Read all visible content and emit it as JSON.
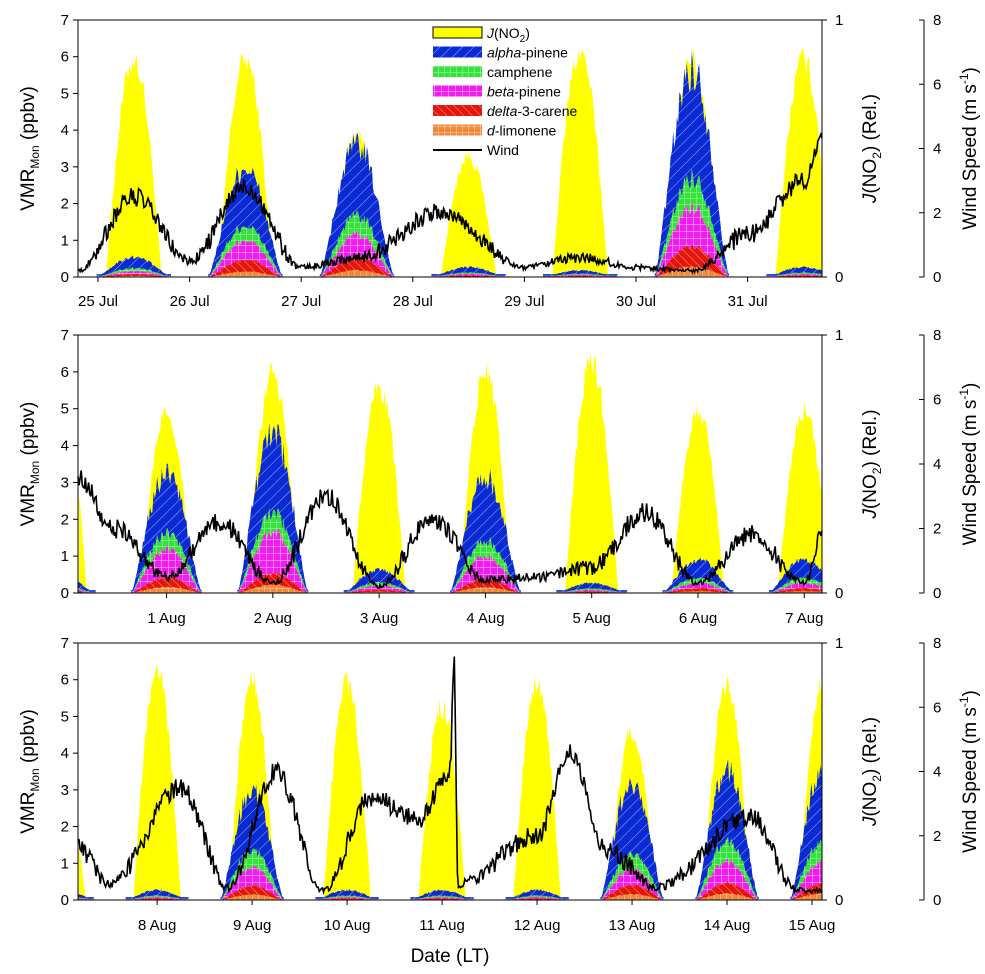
{
  "chart_data": {
    "type": "area",
    "xlabel": "Date (LT)",
    "y_left": {
      "label_main": "VMR",
      "label_sub": "Mon",
      "label_unit": "(ppbv)",
      "range": [
        0,
        7
      ],
      "ticks": [
        "0",
        "1",
        "2",
        "3",
        "4",
        "5",
        "6",
        "7"
      ]
    },
    "y_right1": {
      "label_italic": "J",
      "label_main": "(NO",
      "label_sub": "2",
      "label_tail": ") (Rel.)",
      "range": [
        0,
        1
      ],
      "ticks": [
        "0",
        "1"
      ]
    },
    "y_right2": {
      "label_main": "Wind Speed (m s",
      "label_sup": "-1",
      "label_tail": ")",
      "range": [
        0,
        8
      ],
      "ticks": [
        "0",
        "2",
        "4",
        "6",
        "8"
      ]
    },
    "legend": {
      "position": "top-center (panel 1)",
      "items": [
        {
          "name_pre": "J",
          "name_rest": "(NO",
          "name_sub": "2",
          "name_tail": ")",
          "italic": "pre",
          "color": "#FFFF00",
          "kind": "box"
        },
        {
          "name_pre": "alpha",
          "name_rest": "-pinene",
          "italic": "pre",
          "color": "#0A2AD4",
          "kind": "patch"
        },
        {
          "name_pre": "",
          "name_rest": "camphene",
          "italic": "none",
          "color": "#33E23A",
          "kind": "patch"
        },
        {
          "name_pre": "beta",
          "name_rest": "-pinene",
          "italic": "pre",
          "color": "#F21CF0",
          "kind": "patch"
        },
        {
          "name_pre": "delta",
          "name_rest": "-3-carene",
          "italic": "pre",
          "color": "#E3160C",
          "kind": "patch"
        },
        {
          "name_pre": "d",
          "name_rest": "-limonene",
          "italic": "pre",
          "color": "#F2893A",
          "kind": "patch"
        },
        {
          "name_pre": "",
          "name_rest": "Wind",
          "italic": "none",
          "color": "#000000",
          "kind": "line"
        }
      ]
    },
    "colors": {
      "jno2": "#FFFF00",
      "alpha": "#0A2AD4",
      "camphene": "#33E23A",
      "beta": "#F21CF0",
      "delta": "#E3160C",
      "limonene": "#F2893A",
      "wind": "#000000"
    },
    "panels": [
      {
        "x_start": "2015-07-25",
        "x_end": "2015-07-31T16:00",
        "tick_labels": [
          "25 Jul",
          "26 Jul",
          "27 Jul",
          "28 Jul",
          "29 Jul",
          "30 Jul",
          "31 Jul"
        ],
        "jno2_daily_peak": [
          0.9,
          0.9,
          0.6,
          0.5,
          0.93,
          0.9,
          0.9
        ],
        "monoterpenes": {
          "day_peak": [
            0.6,
            3.3,
            4.0,
            0.3,
            0.2,
            6.3,
            0.3
          ],
          "alpha": [
            0.55,
            0.53,
            0.54,
            0.55,
            0.5,
            0.52,
            0.55
          ],
          "camphene": [
            0.15,
            0.13,
            0.14,
            0.13,
            0.15,
            0.14,
            0.15
          ],
          "beta": [
            0.15,
            0.18,
            0.17,
            0.17,
            0.2,
            0.19,
            0.15
          ],
          "delta": [
            0.1,
            0.11,
            0.1,
            0.1,
            0.1,
            0.1,
            0.1
          ],
          "limonene": [
            0.05,
            0.05,
            0.05,
            0.05,
            0.05,
            0.05,
            0.05
          ]
        },
        "wind_keypoints": [
          [
            "2015-07-25T00:00",
            0.2
          ],
          [
            "2015-07-25T12:00",
            2.5
          ],
          [
            "2015-07-26T00:00",
            0.5
          ],
          [
            "2015-07-26T12:00",
            2.8
          ],
          [
            "2015-07-27T00:00",
            0.3
          ],
          [
            "2015-07-27T12:00",
            0.6
          ],
          [
            "2015-07-28T06:00",
            2.0
          ],
          [
            "2015-07-29T00:00",
            0.3
          ],
          [
            "2015-07-29T12:00",
            0.6
          ],
          [
            "2015-07-30T00:00",
            0.3
          ],
          [
            "2015-07-30T12:00",
            0.2
          ],
          [
            "2015-07-31T00:00",
            1.3
          ],
          [
            "2015-07-31T12:00",
            3.0
          ],
          [
            "2015-07-31T16:00",
            4.2
          ]
        ]
      },
      {
        "x_start": "2015-07-31T16:00",
        "x_end": "2015-08-07T16:00",
        "tick_labels": [
          "1 Aug",
          "2 Aug",
          "3 Aug",
          "4 Aug",
          "5 Aug",
          "6 Aug",
          "7 Aug"
        ],
        "jno2_daily_peak": [
          0.95,
          0.75,
          0.9,
          0.85,
          0.9,
          0.95,
          0.75
        ],
        "monoterpenes": {
          "day_peak": [
            0.5,
            3.6,
            4.8,
            0.7,
            3.5,
            0.3,
            1.0
          ],
          "alpha": [
            0.55,
            0.5,
            0.5,
            0.55,
            0.55,
            0.55,
            0.55
          ],
          "camphene": [
            0.15,
            0.13,
            0.12,
            0.13,
            0.13,
            0.15,
            0.15
          ],
          "beta": [
            0.15,
            0.24,
            0.26,
            0.18,
            0.2,
            0.15,
            0.15
          ],
          "delta": [
            0.1,
            0.08,
            0.07,
            0.09,
            0.07,
            0.1,
            0.1
          ],
          "limonene": [
            0.05,
            0.05,
            0.05,
            0.05,
            0.05,
            0.05,
            0.05
          ]
        },
        "wind_keypoints": [
          [
            "2015-07-31T16:00",
            3.6
          ],
          [
            "2015-08-01T00:00",
            2.0
          ],
          [
            "2015-08-01T12:00",
            0.5
          ],
          [
            "2015-08-02T00:00",
            2.2
          ],
          [
            "2015-08-02T12:00",
            0.3
          ],
          [
            "2015-08-03T00:00",
            3.0
          ],
          [
            "2015-08-03T12:00",
            0.2
          ],
          [
            "2015-08-04T00:00",
            2.3
          ],
          [
            "2015-08-04T12:00",
            0.4
          ],
          [
            "2015-08-05T00:00",
            0.5
          ],
          [
            "2015-08-05T12:00",
            0.8
          ],
          [
            "2015-08-06T00:00",
            2.5
          ],
          [
            "2015-08-06T12:00",
            0.3
          ],
          [
            "2015-08-07T00:00",
            1.8
          ],
          [
            "2015-08-07T12:00",
            0.3
          ],
          [
            "2015-08-07T16:00",
            1.7
          ]
        ]
      },
      {
        "x_start": "2015-08-07T16:00",
        "x_end": "2015-08-15T12:00",
        "tick_labels": [
          "8 Aug",
          "9 Aug",
          "10 Aug",
          "11 Aug",
          "12 Aug",
          "13 Aug",
          "14 Aug",
          "15 Aug"
        ],
        "jno2_daily_peak": [
          0.5,
          0.95,
          0.9,
          0.9,
          0.8,
          0.9,
          0.7,
          0.9
        ],
        "monoterpenes": {
          "day_peak": [
            0.3,
            0.3,
            3.3,
            0.3,
            0.3,
            0.3,
            3.6,
            3.9
          ],
          "alpha": [
            0.55,
            0.55,
            0.55,
            0.55,
            0.55,
            0.55,
            0.6,
            0.55
          ],
          "camphene": [
            0.15,
            0.15,
            0.15,
            0.15,
            0.15,
            0.15,
            0.13,
            0.15
          ],
          "beta": [
            0.15,
            0.15,
            0.17,
            0.15,
            0.15,
            0.15,
            0.14,
            0.17
          ],
          "delta": [
            0.1,
            0.1,
            0.08,
            0.1,
            0.1,
            0.1,
            0.08,
            0.08
          ],
          "limonene": [
            0.05,
            0.05,
            0.05,
            0.05,
            0.05,
            0.05,
            0.05,
            0.05
          ]
        },
        "wind_keypoints": [
          [
            "2015-08-07T16:00",
            1.6
          ],
          [
            "2015-08-08T00:00",
            0.5
          ],
          [
            "2015-08-08T18:00",
            3.5
          ],
          [
            "2015-08-09T06:00",
            0.4
          ],
          [
            "2015-08-09T18:00",
            4.0
          ],
          [
            "2015-08-10T06:00",
            0.3
          ],
          [
            "2015-08-10T18:00",
            3.2
          ],
          [
            "2015-08-11T06:00",
            2.5
          ],
          [
            "2015-08-11T14:00",
            4.0
          ],
          [
            "2015-08-11T15:00",
            7.5
          ],
          [
            "2015-08-11T16:00",
            0.5
          ],
          [
            "2015-08-12T12:00",
            2.0
          ],
          [
            "2015-08-12T20:00",
            4.6
          ],
          [
            "2015-08-13T06:00",
            1.5
          ],
          [
            "2015-08-13T18:00",
            0.4
          ],
          [
            "2015-08-14T18:00",
            2.6
          ],
          [
            "2015-08-15T06:00",
            0.3
          ],
          [
            "2015-08-15T12:00",
            0.3
          ]
        ]
      }
    ]
  }
}
